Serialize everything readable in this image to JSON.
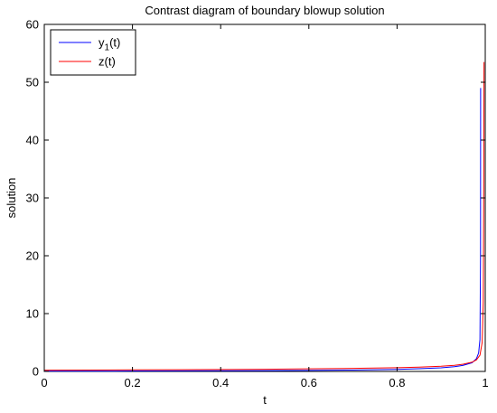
{
  "chart_data": {
    "type": "line",
    "title": "Contrast diagram of boundary blowup solution",
    "xlabel": "t",
    "ylabel": "solution",
    "xlim": [
      0,
      1
    ],
    "ylim": [
      0,
      60
    ],
    "xticks": [
      0,
      0.2,
      0.4,
      0.6,
      0.8,
      1
    ],
    "xtick_labels": [
      "0",
      "0.2",
      "0.4",
      "0.6",
      "0.8",
      "1"
    ],
    "yticks": [
      0,
      10,
      20,
      30,
      40,
      50,
      60
    ],
    "ytick_labels": [
      "0",
      "10",
      "20",
      "30",
      "40",
      "50",
      "60"
    ],
    "grid": false,
    "legend_position": "top-left",
    "series": [
      {
        "name": "y",
        "name_sub": "1",
        "name_suffix": "(t)",
        "color": "#0000ff",
        "x": [
          0,
          0.1,
          0.2,
          0.3,
          0.4,
          0.5,
          0.6,
          0.7,
          0.8,
          0.85,
          0.9,
          0.93,
          0.95,
          0.97,
          0.98,
          0.985,
          0.988,
          0.9893,
          0.9895
        ],
        "y": [
          0.05,
          0.06,
          0.07,
          0.09,
          0.11,
          0.14,
          0.18,
          0.24,
          0.36,
          0.46,
          0.62,
          0.82,
          1.05,
          1.5,
          2.2,
          3.2,
          5.5,
          20,
          49
        ]
      },
      {
        "name": "z(t)",
        "color": "#ff0000",
        "x": [
          0,
          0.1,
          0.2,
          0.3,
          0.4,
          0.5,
          0.6,
          0.7,
          0.8,
          0.85,
          0.9,
          0.93,
          0.95,
          0.97,
          0.98,
          0.988,
          0.993,
          0.9955,
          0.9965,
          0.9972
        ],
        "y": [
          0.22,
          0.24,
          0.27,
          0.3,
          0.33,
          0.38,
          0.44,
          0.52,
          0.65,
          0.75,
          0.9,
          1.05,
          1.25,
          1.6,
          2.0,
          2.8,
          5.0,
          12,
          30,
          53.5
        ]
      }
    ]
  }
}
